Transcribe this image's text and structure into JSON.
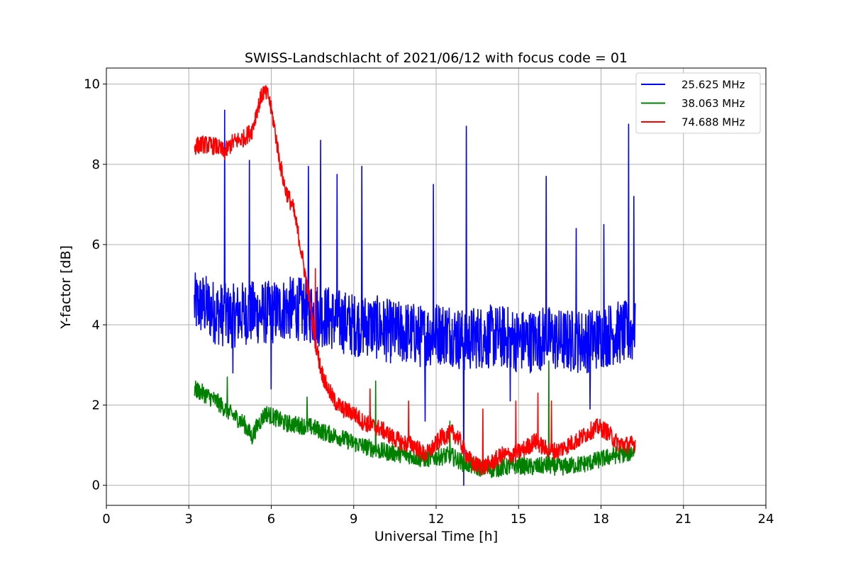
{
  "chart_data": {
    "type": "line",
    "title": "SWISS-Landschlacht of 2021/06/12 with focus code = 01",
    "xlabel": "Universal Time [h]",
    "ylabel": "Y-factor [dB]",
    "xlim": [
      0,
      24
    ],
    "ylim": [
      -0.5,
      10.4
    ],
    "xticks": [
      0,
      3,
      6,
      9,
      12,
      15,
      18,
      21,
      24
    ],
    "xtick_labels": [
      "0",
      "3",
      "6",
      "9",
      "12",
      "15",
      "18",
      "21",
      "24"
    ],
    "yticks": [
      0,
      2,
      4,
      6,
      8,
      10
    ],
    "ytick_labels": [
      "0",
      "2",
      "4",
      "6",
      "8",
      "10"
    ],
    "grid": true,
    "legend_position": "top-right",
    "series": [
      {
        "name": "25.625 MHz",
        "color": "#0000ff",
        "noise": 0.8,
        "points": [
          [
            3.2,
            4.5
          ],
          [
            3.5,
            4.5
          ],
          [
            4.0,
            4.3
          ],
          [
            4.5,
            4.2
          ],
          [
            5.0,
            4.3
          ],
          [
            5.5,
            4.3
          ],
          [
            6.0,
            4.3
          ],
          [
            6.5,
            4.4
          ],
          [
            7.0,
            4.4
          ],
          [
            7.5,
            4.3
          ],
          [
            8.0,
            4.2
          ],
          [
            8.5,
            4.1
          ],
          [
            9.0,
            4.0
          ],
          [
            9.5,
            4.0
          ],
          [
            10.0,
            3.9
          ],
          [
            10.5,
            3.8
          ],
          [
            11.0,
            3.8
          ],
          [
            11.5,
            3.7
          ],
          [
            12.0,
            3.8
          ],
          [
            12.5,
            3.8
          ],
          [
            13.0,
            3.6
          ],
          [
            13.5,
            3.7
          ],
          [
            14.0,
            3.7
          ],
          [
            14.5,
            3.7
          ],
          [
            15.0,
            3.6
          ],
          [
            15.5,
            3.6
          ],
          [
            16.0,
            3.7
          ],
          [
            16.5,
            3.6
          ],
          [
            17.0,
            3.6
          ],
          [
            17.5,
            3.6
          ],
          [
            18.0,
            3.7
          ],
          [
            18.5,
            3.8
          ],
          [
            19.0,
            3.8
          ],
          [
            19.25,
            3.8
          ]
        ],
        "spikes": [
          [
            4.3,
            9.35
          ],
          [
            5.2,
            8.1
          ],
          [
            7.35,
            7.95
          ],
          [
            7.8,
            8.6
          ],
          [
            8.4,
            7.75
          ],
          [
            9.3,
            7.95
          ],
          [
            11.9,
            7.5
          ],
          [
            13.1,
            8.95
          ],
          [
            16.0,
            7.7
          ],
          [
            17.1,
            6.4
          ],
          [
            18.1,
            6.5
          ],
          [
            19.0,
            9.0
          ],
          [
            19.2,
            7.2
          ],
          [
            13.0,
            0.0
          ],
          [
            11.6,
            1.6
          ],
          [
            17.6,
            1.9
          ],
          [
            6.0,
            2.4
          ],
          [
            4.6,
            2.8
          ],
          [
            14.7,
            2.1
          ]
        ]
      },
      {
        "name": "38.063 MHz",
        "color": "#008000",
        "noise": 0.22,
        "points": [
          [
            3.2,
            2.4
          ],
          [
            3.5,
            2.3
          ],
          [
            4.0,
            2.1
          ],
          [
            4.5,
            1.8
          ],
          [
            5.0,
            1.55
          ],
          [
            5.3,
            1.2
          ],
          [
            5.5,
            1.5
          ],
          [
            5.8,
            1.8
          ],
          [
            6.1,
            1.7
          ],
          [
            6.5,
            1.55
          ],
          [
            7.0,
            1.5
          ],
          [
            7.5,
            1.45
          ],
          [
            8.0,
            1.3
          ],
          [
            8.5,
            1.2
          ],
          [
            9.0,
            1.05
          ],
          [
            9.5,
            0.95
          ],
          [
            10.0,
            0.85
          ],
          [
            10.5,
            0.8
          ],
          [
            11.0,
            0.75
          ],
          [
            11.5,
            0.65
          ],
          [
            12.0,
            0.7
          ],
          [
            12.5,
            0.75
          ],
          [
            13.0,
            0.55
          ],
          [
            13.5,
            0.45
          ],
          [
            14.0,
            0.4
          ],
          [
            14.5,
            0.45
          ],
          [
            15.0,
            0.5
          ],
          [
            15.5,
            0.45
          ],
          [
            16.0,
            0.5
          ],
          [
            16.5,
            0.45
          ],
          [
            17.0,
            0.5
          ],
          [
            17.5,
            0.55
          ],
          [
            18.0,
            0.65
          ],
          [
            18.5,
            0.75
          ],
          [
            19.0,
            0.8
          ],
          [
            19.25,
            0.9
          ]
        ],
        "spikes": [
          [
            4.4,
            2.7
          ],
          [
            7.3,
            2.2
          ],
          [
            9.8,
            2.6
          ],
          [
            16.1,
            3.1
          ],
          [
            12.5,
            1.6
          ]
        ]
      },
      {
        "name": "74.688 MHz",
        "color": "#ff0000",
        "noise": 0.22,
        "points": [
          [
            3.2,
            8.45
          ],
          [
            3.5,
            8.5
          ],
          [
            4.0,
            8.45
          ],
          [
            4.3,
            8.3
          ],
          [
            4.6,
            8.55
          ],
          [
            5.0,
            8.65
          ],
          [
            5.3,
            8.85
          ],
          [
            5.5,
            9.4
          ],
          [
            5.7,
            9.8
          ],
          [
            5.9,
            9.7
          ],
          [
            6.1,
            9.0
          ],
          [
            6.3,
            8.1
          ],
          [
            6.5,
            7.4
          ],
          [
            6.8,
            6.9
          ],
          [
            7.0,
            6.2
          ],
          [
            7.2,
            5.4
          ],
          [
            7.4,
            4.6
          ],
          [
            7.6,
            3.6
          ],
          [
            7.8,
            2.9
          ],
          [
            8.0,
            2.5
          ],
          [
            8.3,
            2.1
          ],
          [
            8.6,
            1.9
          ],
          [
            9.0,
            1.8
          ],
          [
            9.3,
            1.6
          ],
          [
            9.6,
            1.5
          ],
          [
            10.0,
            1.4
          ],
          [
            10.4,
            1.2
          ],
          [
            10.8,
            1.05
          ],
          [
            11.2,
            1.0
          ],
          [
            11.6,
            0.75
          ],
          [
            11.9,
            0.95
          ],
          [
            12.2,
            1.2
          ],
          [
            12.6,
            1.3
          ],
          [
            12.8,
            1.2
          ],
          [
            13.0,
            0.9
          ],
          [
            13.3,
            0.55
          ],
          [
            13.7,
            0.45
          ],
          [
            14.0,
            0.55
          ],
          [
            14.4,
            0.75
          ],
          [
            14.8,
            0.75
          ],
          [
            15.2,
            0.9
          ],
          [
            15.6,
            1.1
          ],
          [
            16.0,
            0.9
          ],
          [
            16.4,
            0.85
          ],
          [
            16.8,
            1.0
          ],
          [
            17.2,
            1.15
          ],
          [
            17.6,
            1.35
          ],
          [
            17.9,
            1.45
          ],
          [
            18.2,
            1.35
          ],
          [
            18.6,
            1.05
          ],
          [
            19.0,
            1.0
          ],
          [
            19.25,
            1.05
          ]
        ],
        "spikes": [
          [
            7.6,
            5.4
          ],
          [
            9.6,
            2.4
          ],
          [
            11.0,
            2.1
          ],
          [
            13.7,
            1.9
          ],
          [
            15.7,
            2.3
          ],
          [
            16.2,
            2.1
          ],
          [
            14.9,
            2.1
          ]
        ]
      }
    ]
  }
}
